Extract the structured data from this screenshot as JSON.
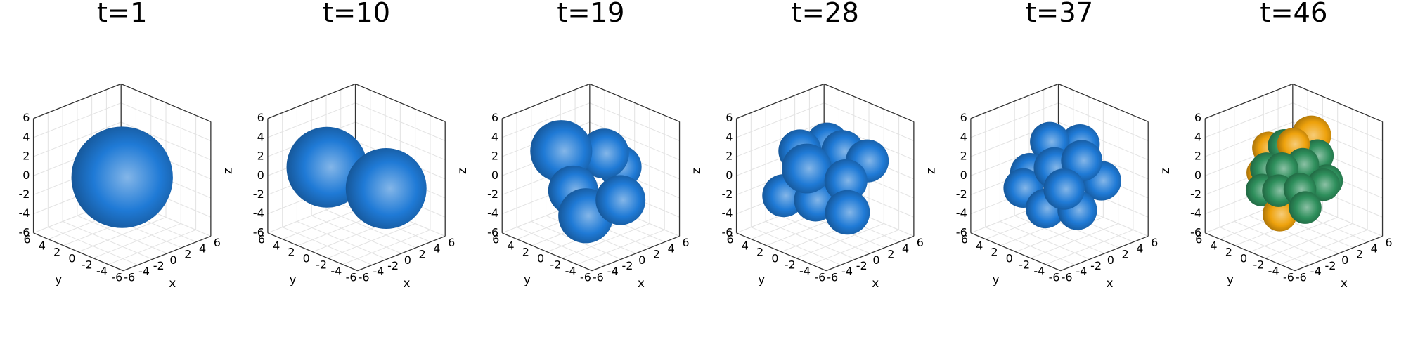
{
  "chart_data": [
    {
      "type": "sphere3d",
      "title": "t=1",
      "xlabel": "x",
      "ylabel": "y",
      "zlabel": "z",
      "xlim": [
        -6,
        6
      ],
      "ylim": [
        -6,
        6
      ],
      "zlim": [
        -6,
        6
      ],
      "xticks": [
        -6,
        -4,
        -2,
        0,
        2,
        4,
        6
      ],
      "yticks": [
        -6,
        -4,
        -2,
        0,
        2,
        4,
        6
      ],
      "zticks": [
        -6,
        -4,
        -2,
        0,
        2,
        4,
        6
      ],
      "x": [
        0
      ],
      "y": [
        0
      ],
      "z": [
        0
      ],
      "size": [
        5.9
      ],
      "colors": [
        "#1f7ad6"
      ]
    },
    {
      "type": "sphere3d",
      "title": "t=10",
      "xlabel": "x",
      "ylabel": "y",
      "zlabel": "z",
      "xlim": [
        -6,
        6
      ],
      "ylim": [
        -6,
        6
      ],
      "zlim": [
        -6,
        6
      ],
      "xticks": [
        -6,
        -4,
        -2,
        0,
        2,
        4,
        6
      ],
      "yticks": [
        -6,
        -4,
        -2,
        0,
        2,
        4,
        6
      ],
      "zticks": [
        -6,
        -4,
        -2,
        0,
        2,
        4,
        6
      ],
      "x": [
        -2,
        1.5
      ],
      "y": [
        2,
        -2.5
      ],
      "z": [
        1,
        -0.8
      ],
      "size": [
        4.7,
        4.7
      ],
      "colors": [
        "#1f7ad6",
        "#1f7ad6"
      ]
    },
    {
      "type": "sphere3d",
      "title": "t=19",
      "xlabel": "x",
      "ylabel": "y",
      "zlabel": "z",
      "xlim": [
        -6,
        6
      ],
      "ylim": [
        -6,
        6
      ],
      "zlim": [
        -6,
        6
      ],
      "xticks": [
        -6,
        -4,
        -2,
        0,
        2,
        4,
        6
      ],
      "yticks": [
        -6,
        -4,
        -2,
        0,
        2,
        4,
        6
      ],
      "zticks": [
        -6,
        -4,
        -2,
        0,
        2,
        4,
        6
      ],
      "x": [
        3.5,
        1.4,
        -2.0,
        -1.7,
        -1.35,
        1.0
      ],
      "y": [
        -0.5,
        -0.4,
        2.0,
        0.7,
        -0.65,
        -3.0
      ],
      "z": [
        0.2,
        2.2,
        2.7,
        -1.1,
        -3.4,
        -1.7
      ],
      "size": [
        2.5,
        2.9,
        3.6,
        2.9,
        3.2,
        2.9
      ],
      "colors": [
        "#1f7ad6",
        "#1f7ad6",
        "#1f7ad6",
        "#1f7ad6",
        "#1f7ad6",
        "#1f7ad6"
      ]
    },
    {
      "type": "sphere3d",
      "title": "t=28",
      "xlabel": "x",
      "ylabel": "y",
      "zlabel": "z",
      "xlim": [
        -6,
        6
      ],
      "ylim": [
        -6,
        6
      ],
      "zlim": [
        -6,
        6
      ],
      "xticks": [
        -6,
        -4,
        -2,
        0,
        2,
        4,
        6
      ],
      "yticks": [
        -6,
        -4,
        -2,
        0,
        2,
        4,
        6
      ],
      "zticks": [
        -6,
        -4,
        -2,
        0,
        2,
        4,
        6
      ],
      "x": [
        1.15,
        2.2,
        -1.2,
        2.85,
        -2.8,
        -0.65,
        -1.75,
        0.9,
        0.5
      ],
      "y": [
        0.85,
        -0.2,
        2.2,
        -2.85,
        2.8,
        0.65,
        0.75,
        -1.9,
        -2.5
      ],
      "z": [
        2.86,
        2.1,
        2.4,
        1.8,
        -2.0,
        -2.4,
        1.2,
        0.0,
        -3.0
      ],
      "size": [
        2.5,
        2.5,
        2.5,
        2.5,
        2.5,
        2.5,
        2.9,
        2.5,
        2.6
      ],
      "colors": [
        "#1f7ad6",
        "#1f7ad6",
        "#1f7ad6",
        "#1f7ad6",
        "#1f7ad6",
        "#1f7ad6",
        "#1f7ad6",
        "#1f7ad6",
        "#1f7ad6"
      ]
    },
    {
      "type": "sphere3d",
      "title": "t=37",
      "xlabel": "x",
      "ylabel": "y",
      "zlabel": "z",
      "xlim": [
        -6,
        6
      ],
      "ylim": [
        -6,
        6
      ],
      "zlim": [
        -6,
        6
      ],
      "xticks": [
        -6,
        -4,
        -2,
        0,
        2,
        4,
        6
      ],
      "yticks": [
        -6,
        -4,
        -2,
        0,
        2,
        4,
        6
      ],
      "zticks": [
        -6,
        -4,
        -2,
        0,
        2,
        4,
        6
      ],
      "x": [
        2.4,
        -0.15,
        3.35,
        -1.5,
        -2.45,
        -0.95,
        0.7,
        -0.85,
        1.0,
        -0.7
      ],
      "y": [
        -0.4,
        1.15,
        -2.35,
        2.5,
        2.45,
        0.95,
        -1.7,
        -0.15,
        -2.0,
        -1.3
      ],
      "z": [
        2.9,
        3.4,
        -0.6,
        0.1,
        -1.2,
        -3.3,
        -3.1,
        1.3,
        2.1,
        -0.6
      ],
      "size": [
        2.3,
        2.3,
        2.3,
        2.3,
        2.3,
        2.3,
        2.3,
        2.4,
        2.4,
        2.4
      ],
      "colors": [
        "#1f7ad6",
        "#1f7ad6",
        "#1f7ad6",
        "#1f7ad6",
        "#1f7ad6",
        "#1f7ad6",
        "#1f7ad6",
        "#1f7ad6",
        "#1f7ad6",
        "#1f7ad6"
      ]
    },
    {
      "type": "sphere3d",
      "title": "t=46",
      "xlabel": "x",
      "ylabel": "y",
      "zlabel": "z",
      "xlim": [
        -6,
        6
      ],
      "ylim": [
        -6,
        6
      ],
      "zlim": [
        -6,
        6
      ],
      "xticks": [
        -6,
        -4,
        -2,
        0,
        2,
        4,
        6
      ],
      "yticks": [
        -6,
        -4,
        -2,
        0,
        2,
        4,
        6
      ],
      "zticks": [
        -6,
        -4,
        -2,
        0,
        2,
        4,
        6
      ],
      "x": [
        2.2,
        -0.7,
        -0.15,
        2.1,
        2.7,
        -1.65,
        -1.85,
        -2.15,
        0.6,
        -0.95,
        -0.53,
        0.1,
        -1.3,
        1.5,
        -2.05,
        -0.6,
        -0.75
      ],
      "y": [
        -0.2,
        2.7,
        1.15,
        -1.1,
        -1.75,
        2.65,
        1.85,
        2.15,
        -0.6,
        0.95,
        -0.47,
        -1.1,
        0.3,
        -2.5,
        0.05,
        -1.4,
        -2.25
      ],
      "z": [
        3.8,
        2.4,
        3.0,
        2.0,
        -0.6,
        0.1,
        0.85,
        -1.4,
        -2.9,
        -3.9,
        3.8,
        1.7,
        1.2,
        -0.4,
        -0.8,
        -0.6,
        -2.2
      ],
      "size": [
        2.3,
        1.9,
        1.9,
        1.9,
        1.9,
        1.8,
        1.9,
        1.9,
        1.9,
        2.0,
        1.9,
        1.9,
        1.9,
        1.9,
        1.9,
        1.9,
        1.9
      ],
      "colors": [
        "#eea20c",
        "#eea20c",
        "#2e8f5c",
        "#2e8f5c",
        "#2e8f5c",
        "#eea20c",
        "#2e8f5c",
        "#2e8f5c",
        "#2e8f5c",
        "#eea20c",
        "#eea20c",
        "#2e8f5c",
        "#2e8f5c",
        "#2e8f5c",
        "#2e8f5c",
        "#2e8f5c",
        "#2e8f5c"
      ]
    }
  ]
}
